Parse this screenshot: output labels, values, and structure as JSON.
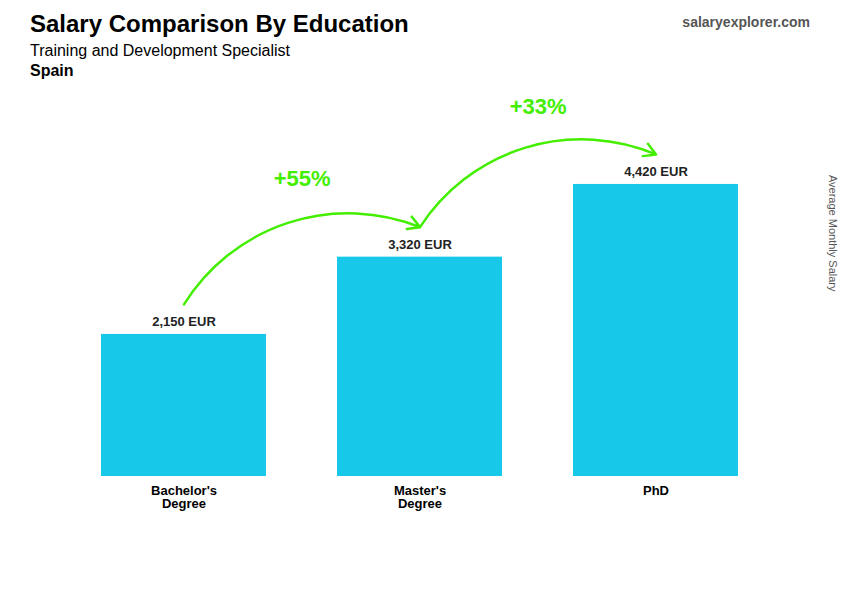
{
  "chart_data": {
    "type": "bar",
    "title": "Salary Comparison By Education",
    "subtitle": [
      "Training and Development Specialist",
      "Spain"
    ],
    "caption": "salaryexplorer.com",
    "ylabel": "Average Monthly Salary",
    "categories": [
      "Bachelor's\nDegree",
      "Master's\nDegree",
      "PhD"
    ],
    "values": [
      2150,
      3320,
      4420
    ],
    "value_labels": [
      "2,150 EUR",
      "3,320 EUR",
      "4,420 EUR"
    ],
    "data_labels": true,
    "color": "#18C8E8",
    "ylim": [
      0,
      5600
    ],
    "tick_labels": "x",
    "annotations": [
      {
        "text": "+55%",
        "from": "Bachelor's\nDegree",
        "to": "Master's\nDegree",
        "color": "#44EE00"
      },
      {
        "text": "+33%",
        "from": "Master's\nDegree",
        "to": "PhD",
        "color": "#44EE00"
      }
    ]
  }
}
